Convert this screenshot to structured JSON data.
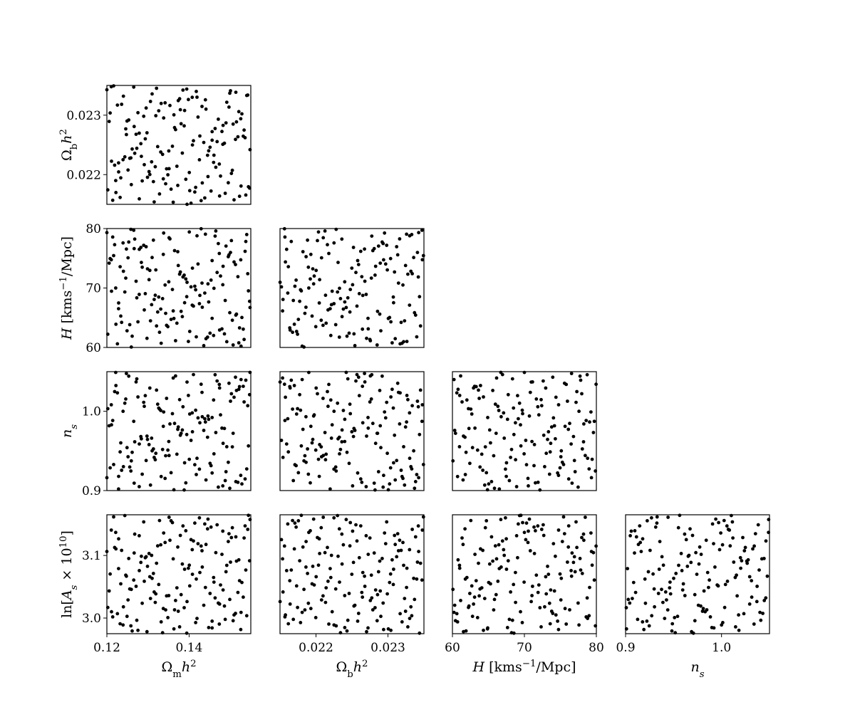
{
  "chart_data": {
    "type": "scatter",
    "colors": {
      "marker": "#000000",
      "frame": "#000000",
      "background": "#ffffff"
    },
    "grid": false,
    "legend": "none",
    "parameters": [
      {
        "id": "omega_m",
        "label": "Ωₘh²",
        "range": [
          0.12,
          0.155
        ],
        "ticks": [
          0.12,
          0.14
        ],
        "tick_labels": [
          "0.12",
          "0.14"
        ]
      },
      {
        "id": "omega_b",
        "label": "Ω_b h²",
        "range": [
          0.0215,
          0.0235
        ],
        "ticks": [
          0.022,
          0.023
        ],
        "tick_labels": [
          "0.022",
          "0.023"
        ]
      },
      {
        "id": "H",
        "label": "H [kms⁻¹/Mpc]",
        "range": [
          60,
          80
        ],
        "ticks": [
          60,
          70,
          80
        ],
        "tick_labels": [
          "60",
          "70",
          "80"
        ]
      },
      {
        "id": "n_s",
        "label": "n_s",
        "range": [
          0.9,
          1.05
        ],
        "ticks": [
          0.9,
          1.0
        ],
        "tick_labels": [
          "0.9",
          "1.0"
        ]
      },
      {
        "id": "ln_As",
        "label": "ln[A_s × 10¹⁰]",
        "range": [
          2.975,
          3.165
        ],
        "ticks": [
          3.0,
          3.1
        ],
        "tick_labels": [
          "3.0",
          "3.1"
        ]
      }
    ],
    "num_samples": 160,
    "panels": [
      {
        "x": "omega_m",
        "y": "omega_b"
      },
      {
        "x": "omega_m",
        "y": "H"
      },
      {
        "x": "omega_b",
        "y": "H"
      },
      {
        "x": "omega_m",
        "y": "n_s"
      },
      {
        "x": "omega_b",
        "y": "n_s"
      },
      {
        "x": "H",
        "y": "n_s"
      },
      {
        "x": "omega_m",
        "y": "ln_As"
      },
      {
        "x": "omega_b",
        "y": "ln_As"
      },
      {
        "x": "H",
        "y": "ln_As"
      },
      {
        "x": "n_s",
        "y": "ln_As"
      }
    ]
  }
}
